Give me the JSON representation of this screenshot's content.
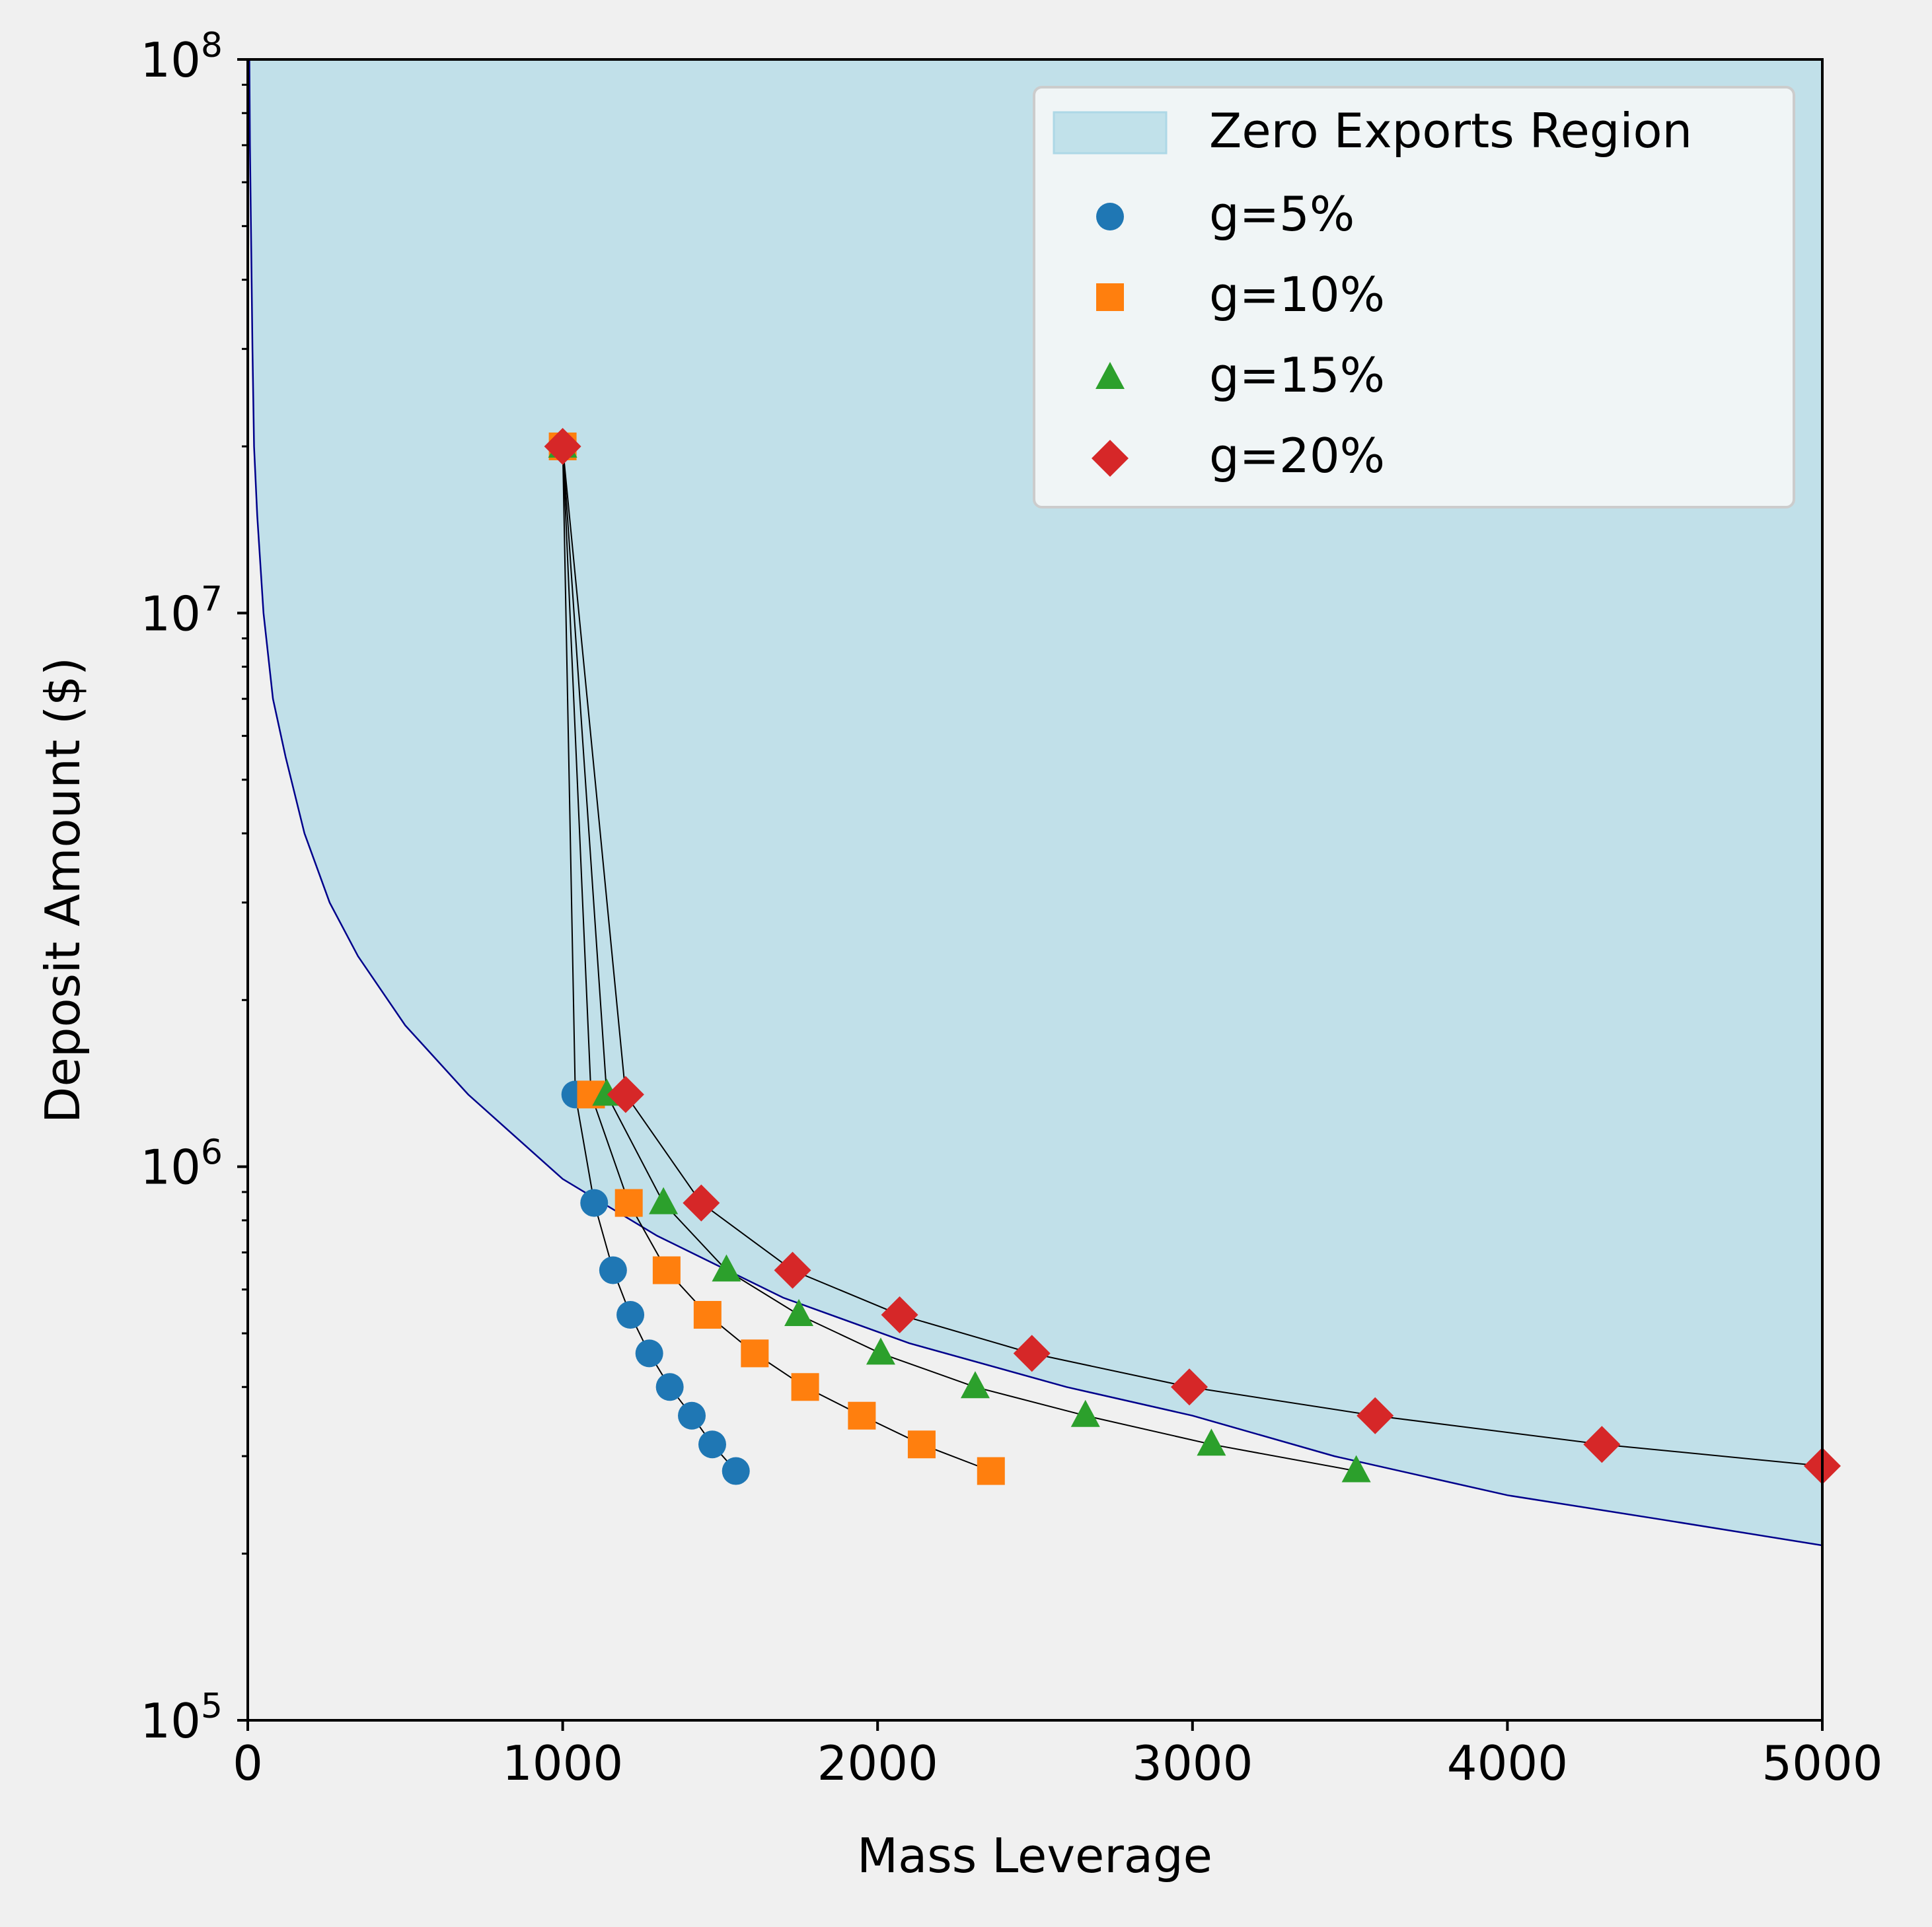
{
  "chart_data": {
    "type": "scatter",
    "xlabel": "Mass Leverage",
    "ylabel": "Deposit Amount ($)",
    "xlim": [
      0,
      5000
    ],
    "ylim": [
      100000,
      100000000
    ],
    "yscale": "log",
    "x_ticks": [
      "0",
      "1000",
      "2000",
      "3000",
      "4000",
      "5000"
    ],
    "y_ticks": [
      {
        "value": 100000,
        "base": "10",
        "exp": "5"
      },
      {
        "value": 1000000,
        "base": "10",
        "exp": "6"
      },
      {
        "value": 10000000,
        "base": "10",
        "exp": "7"
      },
      {
        "value": 100000000,
        "base": "10",
        "exp": "8"
      }
    ],
    "legend_position": "top-right",
    "region": {
      "name": "Zero Exports Region",
      "color": "#add8e6",
      "boundary_color": "#00008b",
      "boundary": [
        [
          5,
          100000000
        ],
        [
          7,
          70000000
        ],
        [
          10,
          50000000
        ],
        [
          15,
          30000000
        ],
        [
          20,
          20000000
        ],
        [
          30,
          15000000
        ],
        [
          50,
          10000000
        ],
        [
          80,
          7000000
        ],
        [
          120,
          5500000
        ],
        [
          180,
          4000000
        ],
        [
          260,
          3000000
        ],
        [
          350,
          2400000
        ],
        [
          500,
          1800000
        ],
        [
          700,
          1350000
        ],
        [
          1000,
          950000
        ],
        [
          1300,
          750000
        ],
        [
          1700,
          580000
        ],
        [
          2100,
          480000
        ],
        [
          2600,
          400000
        ],
        [
          3000,
          355000
        ],
        [
          3450,
          300000
        ],
        [
          4000,
          255000
        ],
        [
          4500,
          230000
        ],
        [
          5000,
          207000
        ]
      ]
    },
    "start_point": [
      1000,
      20000000
    ],
    "series": [
      {
        "name": "g=5%",
        "marker": "circle",
        "color": "#1f77b4",
        "points": [
          [
            1040,
            1350000
          ],
          [
            1100,
            860000
          ],
          [
            1160,
            650000
          ],
          [
            1215,
            540000
          ],
          [
            1275,
            460000
          ],
          [
            1340,
            400000
          ],
          [
            1410,
            355000
          ],
          [
            1475,
            315000
          ],
          [
            1550,
            282000
          ]
        ]
      },
      {
        "name": "g=10%",
        "marker": "square",
        "color": "#ff7f0e",
        "points": [
          [
            1090,
            1350000
          ],
          [
            1210,
            860000
          ],
          [
            1330,
            650000
          ],
          [
            1460,
            540000
          ],
          [
            1610,
            460000
          ],
          [
            1770,
            400000
          ],
          [
            1950,
            355000
          ],
          [
            2140,
            315000
          ],
          [
            2360,
            282000
          ]
        ]
      },
      {
        "name": "g=15%",
        "marker": "triangle",
        "color": "#2ca02c",
        "points": [
          [
            1140,
            1350000
          ],
          [
            1320,
            860000
          ],
          [
            1520,
            650000
          ],
          [
            1750,
            540000
          ],
          [
            2010,
            460000
          ],
          [
            2310,
            400000
          ],
          [
            2660,
            355000
          ],
          [
            3060,
            315000
          ],
          [
            3520,
            282000
          ]
        ]
      },
      {
        "name": "g=20%",
        "marker": "diamond",
        "color": "#d62728",
        "points": [
          [
            1200,
            1350000
          ],
          [
            1440,
            860000
          ],
          [
            1730,
            650000
          ],
          [
            2070,
            540000
          ],
          [
            2490,
            460000
          ],
          [
            2990,
            400000
          ],
          [
            3580,
            355000
          ],
          [
            4300,
            315000
          ],
          [
            5000,
            288000
          ]
        ]
      }
    ]
  }
}
